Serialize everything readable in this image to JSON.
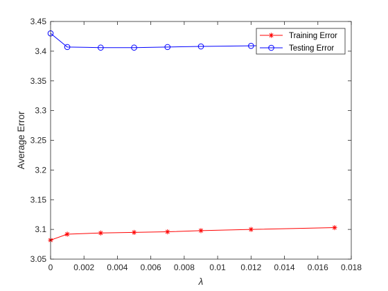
{
  "chart_data": {
    "type": "line",
    "title": "",
    "xlabel": "λ",
    "ylabel": "Average Error",
    "xlim": [
      0,
      0.018
    ],
    "ylim": [
      3.05,
      3.45
    ],
    "x_ticks": [
      "0",
      "0.002",
      "0.004",
      "0.006",
      "0.008",
      "0.01",
      "0.012",
      "0.014",
      "0.016",
      "0.018"
    ],
    "y_ticks": [
      "3.05",
      "3.1",
      "3.15",
      "3.2",
      "3.25",
      "3.3",
      "3.35",
      "3.4",
      "3.45"
    ],
    "grid": false,
    "legend_position": "top-right",
    "series": [
      {
        "name": "Training Error",
        "color": "#ff0000",
        "marker": "asterisk",
        "x": [
          0,
          0.001,
          0.003,
          0.005,
          0.007,
          0.009,
          0.012,
          0.017
        ],
        "y": [
          3.082,
          3.092,
          3.094,
          3.095,
          3.096,
          3.098,
          3.1,
          3.103
        ]
      },
      {
        "name": "Testing Error",
        "color": "#0000ff",
        "marker": "circle",
        "x": [
          0,
          0.001,
          0.003,
          0.005,
          0.007,
          0.009,
          0.012,
          0.017
        ],
        "y": [
          3.43,
          3.407,
          3.406,
          3.406,
          3.407,
          3.408,
          3.409,
          3.412
        ]
      }
    ]
  }
}
